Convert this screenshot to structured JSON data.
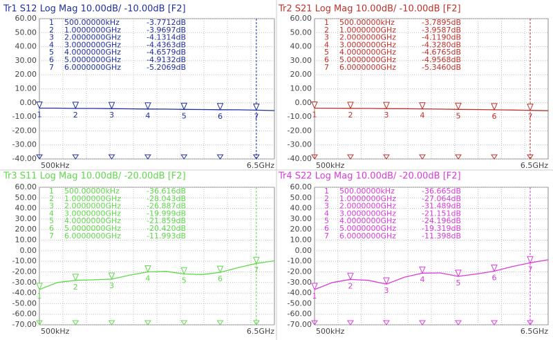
{
  "chart_data": [
    {
      "type": "line",
      "title": "Tr1 S12 Log Mag 10.00dB/ -10.00dB [F2]",
      "color": "#1f2f9f",
      "x": [
        0.0005,
        0.5,
        1,
        1.5,
        2,
        2.5,
        3,
        3.5,
        4,
        4.5,
        5,
        5.5,
        6,
        6.5
      ],
      "values": [
        -3.77,
        -3.8,
        -3.97,
        -4.0,
        -4.13,
        -4.3,
        -4.44,
        -4.5,
        -4.66,
        -4.8,
        -4.91,
        -5.0,
        -5.21,
        -5.5
      ],
      "xlim": [
        0.0005,
        6.5
      ],
      "xticks": [
        {
          "value": 0.0005,
          "label": "500kHz"
        },
        {
          "value": 6.5,
          "label": "6.5GHz"
        }
      ],
      "ylim": [
        -40,
        60
      ],
      "yticks": [
        {
          "value": 60,
          "label": "60.00"
        },
        {
          "value": 50,
          "label": "50.00"
        },
        {
          "value": 40,
          "label": "40.00"
        },
        {
          "value": 30,
          "label": "30.00"
        },
        {
          "value": 20,
          "label": "20.00"
        },
        {
          "value": 10,
          "label": "10.00"
        },
        {
          "value": 0,
          "label": "0.00"
        },
        {
          "value": -10,
          "label": "-10.00"
        },
        {
          "value": -20,
          "label": "-20.00"
        },
        {
          "value": -30,
          "label": "-30.00"
        },
        {
          "value": -40,
          "label": "-40.00"
        }
      ],
      "grid": true,
      "markers": {
        "labels": [
          1,
          2,
          3,
          4,
          5,
          6,
          7
        ],
        "x": [
          0.0005,
          1,
          2,
          3,
          4,
          5,
          6
        ],
        "x_labels": [
          "500.00000kHz",
          "1.0000000GHz",
          "2.0000000GHz",
          "3.0000000GHz",
          "4.0000000GHz",
          "5.0000000GHz",
          "6.0000000GHz"
        ],
        "values": [
          -3.7712,
          -3.9697,
          -4.1314,
          -4.4363,
          -4.6579,
          -4.9132,
          -5.2069
        ],
        "value_labels": [
          "-3.7712dB",
          "-3.9697dB",
          "-4.1314dB",
          "-4.4363dB",
          "-4.6579dB",
          "-4.9132dB",
          "-5.2069dB"
        ]
      }
    },
    {
      "type": "line",
      "title": "Tr2 S21 Log Mag 10.00dB/ -10.00dB [F2]",
      "color": "#c0302a",
      "x": [
        0.0005,
        0.5,
        1,
        1.5,
        2,
        2.5,
        3,
        3.5,
        4,
        4.5,
        5,
        5.5,
        6,
        6.5
      ],
      "values": [
        -3.79,
        -3.85,
        -3.96,
        -4.0,
        -4.12,
        -4.2,
        -4.33,
        -4.5,
        -4.68,
        -4.8,
        -4.96,
        -5.1,
        -5.35,
        -5.6
      ],
      "xlim": [
        0.0005,
        6.5
      ],
      "xticks": [
        {
          "value": 0.0005,
          "label": "500kHz"
        },
        {
          "value": 6.5,
          "label": "6.5GHz"
        }
      ],
      "ylim": [
        -40,
        60
      ],
      "yticks": [
        {
          "value": 60,
          "label": "60.00"
        },
        {
          "value": 50,
          "label": "50.00"
        },
        {
          "value": 40,
          "label": "40.00"
        },
        {
          "value": 30,
          "label": "30.00"
        },
        {
          "value": 20,
          "label": "20.00"
        },
        {
          "value": 10,
          "label": "10.00"
        },
        {
          "value": 0,
          "label": "0.00"
        },
        {
          "value": -10,
          "label": "-10.00"
        },
        {
          "value": -20,
          "label": "-20.00"
        },
        {
          "value": -30,
          "label": "-30.00"
        },
        {
          "value": -40,
          "label": "-40.00"
        }
      ],
      "grid": true,
      "markers": {
        "labels": [
          1,
          2,
          3,
          4,
          5,
          6,
          7
        ],
        "x": [
          0.0005,
          1,
          2,
          3,
          4,
          5,
          6
        ],
        "x_labels": [
          "500.00000kHz",
          "1.0000000GHz",
          "2.0000000GHz",
          "3.0000000GHz",
          "4.0000000GHz",
          "5.0000000GHz",
          "6.0000000GHz"
        ],
        "values": [
          -3.7895,
          -3.9587,
          -4.119,
          -4.328,
          -4.6765,
          -4.9568,
          -5.346
        ],
        "value_labels": [
          "-3.7895dB",
          "-3.9587dB",
          "-4.1190dB",
          "-4.3280dB",
          "-4.6765dB",
          "-4.9568dB",
          "-5.3460dB"
        ]
      }
    },
    {
      "type": "line",
      "title": "Tr3 S11 Log Mag 10.00dB/ -20.00dB [F2]",
      "color": "#5fd84a",
      "x": [
        0.0005,
        0.5,
        1,
        1.5,
        2,
        2.5,
        3,
        3.5,
        4,
        4.5,
        5,
        5.5,
        6,
        6.5
      ],
      "values": [
        -36.6,
        -30,
        -28.0,
        -27.5,
        -26.9,
        -23,
        -20.0,
        -19.5,
        -21.9,
        -22.5,
        -20.4,
        -16,
        -12.0,
        -9.5
      ],
      "xlim": [
        0.0005,
        6.5
      ],
      "xticks": [
        {
          "value": 0.0005,
          "label": "500kHz"
        },
        {
          "value": 6.5,
          "label": "6.5GHz"
        }
      ],
      "ylim": [
        -70,
        60
      ],
      "yticks": [
        {
          "value": 60,
          "label": "60.00"
        },
        {
          "value": 50,
          "label": "50.00"
        },
        {
          "value": 40,
          "label": "40.00"
        },
        {
          "value": 30,
          "label": "30.00"
        },
        {
          "value": 20,
          "label": "20.00"
        },
        {
          "value": 10,
          "label": "10.00"
        },
        {
          "value": 0,
          "label": "0.00"
        },
        {
          "value": -10,
          "label": "-10.00"
        },
        {
          "value": -20,
          "label": "-20.00"
        },
        {
          "value": -30,
          "label": "-30.00"
        },
        {
          "value": -40,
          "label": "-40.00"
        },
        {
          "value": -50,
          "label": "-50.00"
        },
        {
          "value": -60,
          "label": "-60.00"
        },
        {
          "value": -70,
          "label": "-70.00"
        }
      ],
      "grid": true,
      "markers": {
        "labels": [
          1,
          2,
          3,
          4,
          5,
          6,
          7
        ],
        "x": [
          0.0005,
          1,
          2,
          3,
          4,
          5,
          6
        ],
        "x_labels": [
          "500.00000kHz",
          "1.0000000GHz",
          "2.0000000GHz",
          "3.0000000GHz",
          "4.0000000GHz",
          "5.0000000GHz",
          "6.0000000GHz"
        ],
        "values": [
          -36.616,
          -28.043,
          -26.887,
          -19.999,
          -21.859,
          -20.42,
          -11.993
        ],
        "value_labels": [
          "-36.616dB",
          "-28.043dB",
          "-26.887dB",
          "-19.999dB",
          "-21.859dB",
          "-20.420dB",
          "-11.993dB"
        ]
      }
    },
    {
      "type": "line",
      "title": "Tr4 S22 Log Mag 10.00dB/ -20.00dB [F2]",
      "color": "#d93ad9",
      "x": [
        0.0005,
        0.5,
        1,
        1.5,
        2,
        2.5,
        3,
        3.5,
        4,
        4.5,
        5,
        5.5,
        6,
        6.5
      ],
      "values": [
        -36.7,
        -30,
        -27.1,
        -28,
        -31.5,
        -25,
        -21.2,
        -21,
        -24.2,
        -22,
        -19.3,
        -15,
        -11.4,
        -8.5
      ],
      "xlim": [
        0.0005,
        6.5
      ],
      "xticks": [
        {
          "value": 0.0005,
          "label": "500kHz"
        },
        {
          "value": 6.5,
          "label": "6.5GHz"
        }
      ],
      "ylim": [
        -70,
        60
      ],
      "yticks": [
        {
          "value": 60,
          "label": "60.00"
        },
        {
          "value": 50,
          "label": "50.00"
        },
        {
          "value": 40,
          "label": "40.00"
        },
        {
          "value": 30,
          "label": "30.00"
        },
        {
          "value": 20,
          "label": "20.00"
        },
        {
          "value": 10,
          "label": "10.00"
        },
        {
          "value": 0,
          "label": "0.00"
        },
        {
          "value": -10,
          "label": "-10.00"
        },
        {
          "value": -20,
          "label": "-20.00"
        },
        {
          "value": -30,
          "label": "-30.00"
        },
        {
          "value": -40,
          "label": "-40.00"
        },
        {
          "value": -50,
          "label": "-50.00"
        },
        {
          "value": -60,
          "label": "-60.00"
        },
        {
          "value": -70,
          "label": "-70.00"
        }
      ],
      "grid": true,
      "markers": {
        "labels": [
          1,
          2,
          3,
          4,
          5,
          6,
          7
        ],
        "x": [
          0.0005,
          1,
          2,
          3,
          4,
          5,
          6
        ],
        "x_labels": [
          "500.00000kHz",
          "1.0000000GHz",
          "2.0000000GHz",
          "3.0000000GHz",
          "4.0000000GHz",
          "5.0000000GHz",
          "6.0000000GHz"
        ],
        "values": [
          -36.665,
          -27.064,
          -31.489,
          -21.151,
          -24.196,
          -19.319,
          -11.398
        ],
        "value_labels": [
          "-36.665dB",
          "-27.064dB",
          "-31.489dB",
          "-21.151dB",
          "-24.196dB",
          "-19.319dB",
          "-11.398dB"
        ]
      }
    }
  ]
}
